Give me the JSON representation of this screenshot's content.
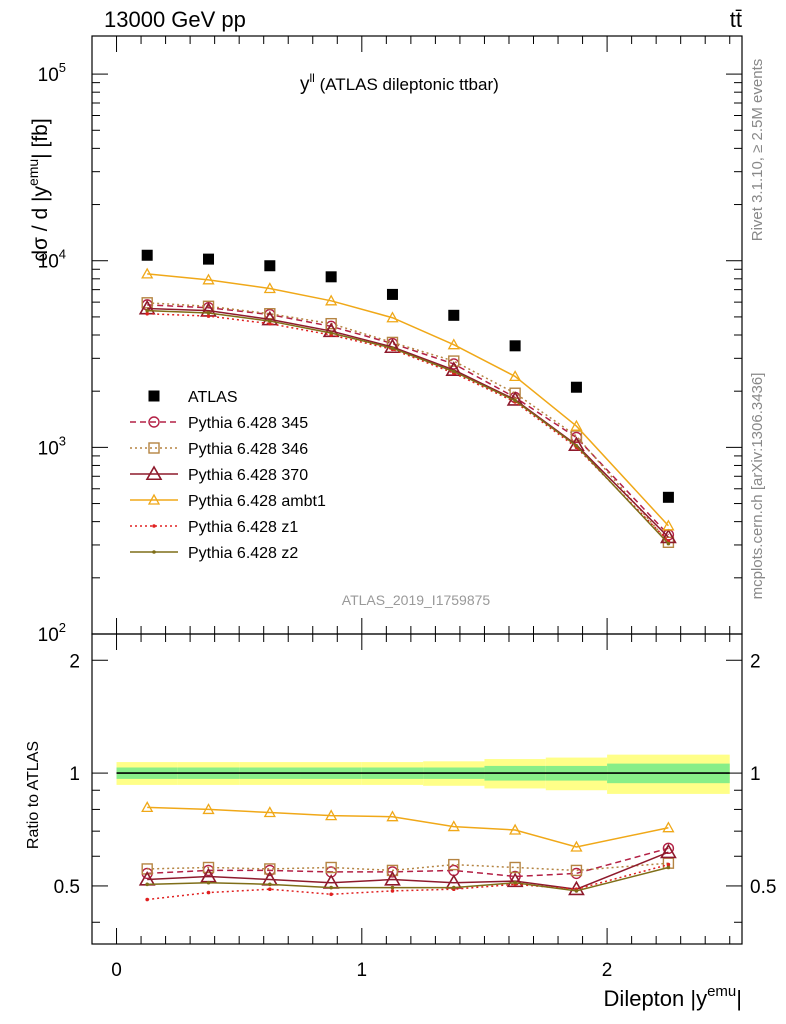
{
  "header": {
    "left_label": "13000 GeV pp",
    "right_label": "tt̄"
  },
  "side_labels": {
    "rivet": "Rivet 3.1.10, ≥ 2.5M events",
    "mcplots": "mcplots.cern.ch [arXiv:1306.3436]"
  },
  "main_panel": {
    "title_main": "y",
    "title_sup": "ll",
    "title_rest": " (ATLAS dileptonic ttbar)",
    "ylabel_main": "dσ / d |y",
    "ylabel_sup": "emu",
    "ylabel_end": "| [fb]",
    "analysis_id": "ATLAS_2019_I1759875",
    "ytick_labels": [
      "10",
      "10",
      "10",
      "10"
    ],
    "ytick_exponents": [
      "2",
      "3",
      "4",
      "5"
    ]
  },
  "ratio_panel": {
    "ylabel": "Ratio to ATLAS",
    "ytick_labels": [
      "0.5",
      "1",
      "2"
    ]
  },
  "x_axis": {
    "xlabel_main": "Dilepton |y",
    "xlabel_sup": "emu",
    "xlabel_end": "|",
    "tick_labels": [
      "0",
      "1",
      "2"
    ]
  },
  "legend": {
    "entries": [
      "ATLAS",
      "Pythia 6.428 345",
      "Pythia 6.428 346",
      "Pythia 6.428 370",
      "Pythia 6.428 ambt1",
      "Pythia 6.428 z1",
      "Pythia 6.428 z2"
    ]
  },
  "chart_data": {
    "type": "line",
    "x_bin_edges": [
      0,
      0.25,
      0.5,
      0.75,
      1.0,
      1.25,
      1.5,
      1.75,
      2.0,
      2.5
    ],
    "x": [
      0.125,
      0.375,
      0.625,
      0.875,
      1.125,
      1.375,
      1.625,
      1.875,
      2.25
    ],
    "xlim": [
      -0.1,
      2.55
    ],
    "main_ylim": [
      100,
      160000
    ],
    "main_yscale": "log",
    "ratio_ylim": [
      0.35,
      2.35
    ],
    "ratio_yscale": "log",
    "data": {
      "name": "ATLAS",
      "color": "#000000",
      "values": [
        10700,
        10200,
        9400,
        8200,
        6600,
        5100,
        3500,
        2100,
        540
      ]
    },
    "band_inner": [
      0.035,
      0.035,
      0.035,
      0.035,
      0.035,
      0.035,
      0.045,
      0.045,
      0.06
    ],
    "band_outer": [
      0.07,
      0.07,
      0.07,
      0.07,
      0.07,
      0.075,
      0.09,
      0.1,
      0.12
    ],
    "series": [
      {
        "name": "Pythia 6.428 345",
        "color": "#b32045",
        "marker": "circle",
        "dash": "6,4",
        "values": [
          5800,
          5600,
          5150,
          4450,
          3600,
          2800,
          1850,
          1130,
          340
        ],
        "ratio": [
          0.54,
          0.55,
          0.55,
          0.545,
          0.545,
          0.55,
          0.53,
          0.54,
          0.63
        ]
      },
      {
        "name": "Pythia 6.428 346",
        "color": "#b58442",
        "marker": "square",
        "dash": "2,3",
        "values": [
          5950,
          5700,
          5200,
          4600,
          3650,
          2900,
          1950,
          1150,
          310
        ],
        "ratio": [
          0.555,
          0.56,
          0.555,
          0.56,
          0.55,
          0.57,
          0.56,
          0.55,
          0.575
        ]
      },
      {
        "name": "Pythia 6.428 370",
        "color": "#8e1a2c",
        "marker": "triangle",
        "dash": "",
        "values": [
          5550,
          5400,
          4850,
          4200,
          3450,
          2600,
          1800,
          1030,
          330
        ],
        "ratio": [
          0.52,
          0.53,
          0.52,
          0.51,
          0.52,
          0.51,
          0.515,
          0.49,
          0.615
        ]
      },
      {
        "name": "Pythia 6.428 ambt1",
        "color": "#f0a818",
        "marker": "triangle-small",
        "dash": "",
        "values": [
          8500,
          7900,
          7100,
          6100,
          4950,
          3550,
          2400,
          1300,
          380
        ],
        "ratio": [
          0.81,
          0.8,
          0.785,
          0.77,
          0.765,
          0.72,
          0.705,
          0.635,
          0.715
        ]
      },
      {
        "name": "Pythia 6.428 z1",
        "color": "#e02020",
        "marker": "dot",
        "dash": "2,3",
        "values": [
          5200,
          5050,
          4600,
          4000,
          3350,
          2500,
          1750,
          1000,
          315
        ],
        "ratio": [
          0.46,
          0.48,
          0.49,
          0.475,
          0.485,
          0.49,
          0.505,
          0.49,
          0.57
        ]
      },
      {
        "name": "Pythia 6.428 z2",
        "color": "#7f6e18",
        "marker": "dot",
        "dash": "",
        "values": [
          5400,
          5250,
          4750,
          4100,
          3400,
          2550,
          1780,
          1020,
          305
        ],
        "ratio": [
          0.505,
          0.51,
          0.505,
          0.495,
          0.495,
          0.495,
          0.51,
          0.485,
          0.56
        ]
      }
    ]
  }
}
